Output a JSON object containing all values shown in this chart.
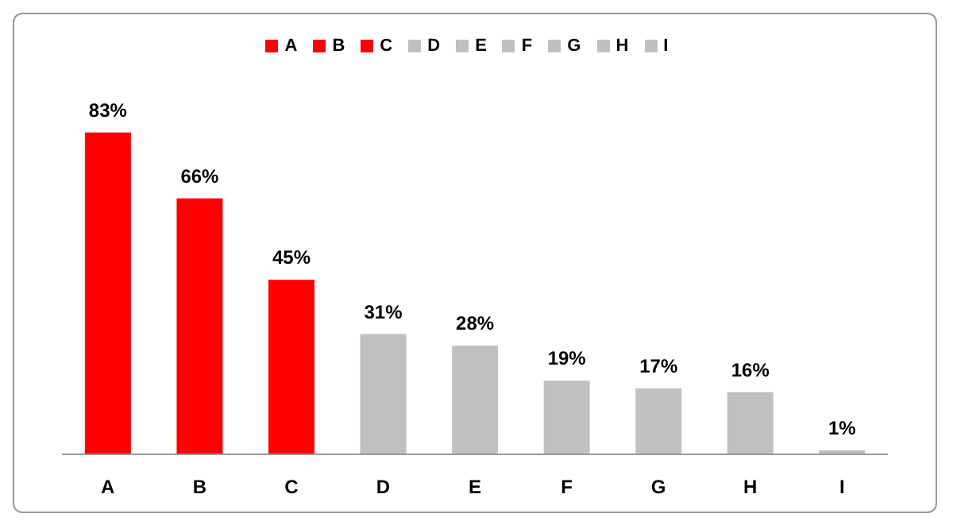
{
  "chart_data": {
    "type": "bar",
    "categories": [
      "A",
      "B",
      "C",
      "D",
      "E",
      "F",
      "G",
      "H",
      "I"
    ],
    "stacked": true,
    "series": [
      {
        "name": "A",
        "color": "#ff0000",
        "values": [
          83,
          null,
          null,
          null,
          null,
          null,
          null,
          null,
          null
        ],
        "value_labels": [
          "83%",
          null,
          null,
          null,
          null,
          null,
          null,
          null,
          null
        ]
      },
      {
        "name": "B",
        "color": "#ff0000",
        "values": [
          null,
          66,
          null,
          null,
          null,
          null,
          null,
          null,
          null
        ],
        "value_labels": [
          null,
          "66%",
          null,
          null,
          null,
          null,
          null,
          null,
          null
        ]
      },
      {
        "name": "C",
        "color": "#ff0000",
        "values": [
          null,
          null,
          45,
          null,
          null,
          null,
          null,
          null,
          null
        ],
        "value_labels": [
          null,
          null,
          "45%",
          null,
          null,
          null,
          null,
          null,
          null
        ]
      },
      {
        "name": "D",
        "color": "#c0c0c0",
        "values": [
          null,
          null,
          null,
          31,
          null,
          null,
          null,
          null,
          null
        ],
        "value_labels": [
          null,
          null,
          null,
          "31%",
          null,
          null,
          null,
          null,
          null
        ]
      },
      {
        "name": "E",
        "color": "#c0c0c0",
        "values": [
          null,
          null,
          null,
          null,
          28,
          null,
          null,
          null,
          null
        ],
        "value_labels": [
          null,
          null,
          null,
          null,
          "28%",
          null,
          null,
          null,
          null
        ]
      },
      {
        "name": "F",
        "color": "#c0c0c0",
        "values": [
          null,
          null,
          null,
          null,
          null,
          19,
          null,
          null,
          null
        ],
        "value_labels": [
          null,
          null,
          null,
          null,
          null,
          "19%",
          null,
          null,
          null
        ]
      },
      {
        "name": "G",
        "color": "#c0c0c0",
        "values": [
          null,
          null,
          null,
          null,
          null,
          null,
          17,
          null,
          null
        ],
        "value_labels": [
          null,
          null,
          null,
          null,
          null,
          null,
          "17%",
          null,
          null
        ]
      },
      {
        "name": "H",
        "color": "#c0c0c0",
        "values": [
          null,
          null,
          null,
          null,
          null,
          null,
          null,
          16,
          null
        ],
        "value_labels": [
          null,
          null,
          null,
          null,
          null,
          null,
          null,
          "16%",
          null
        ]
      },
      {
        "name": "I",
        "color": "#c0c0c0",
        "values": [
          null,
          null,
          null,
          null,
          null,
          null,
          null,
          null,
          1
        ],
        "value_labels": [
          null,
          null,
          null,
          null,
          null,
          null,
          null,
          null,
          "1%"
        ]
      }
    ],
    "legend": "top",
    "grid": false
  }
}
